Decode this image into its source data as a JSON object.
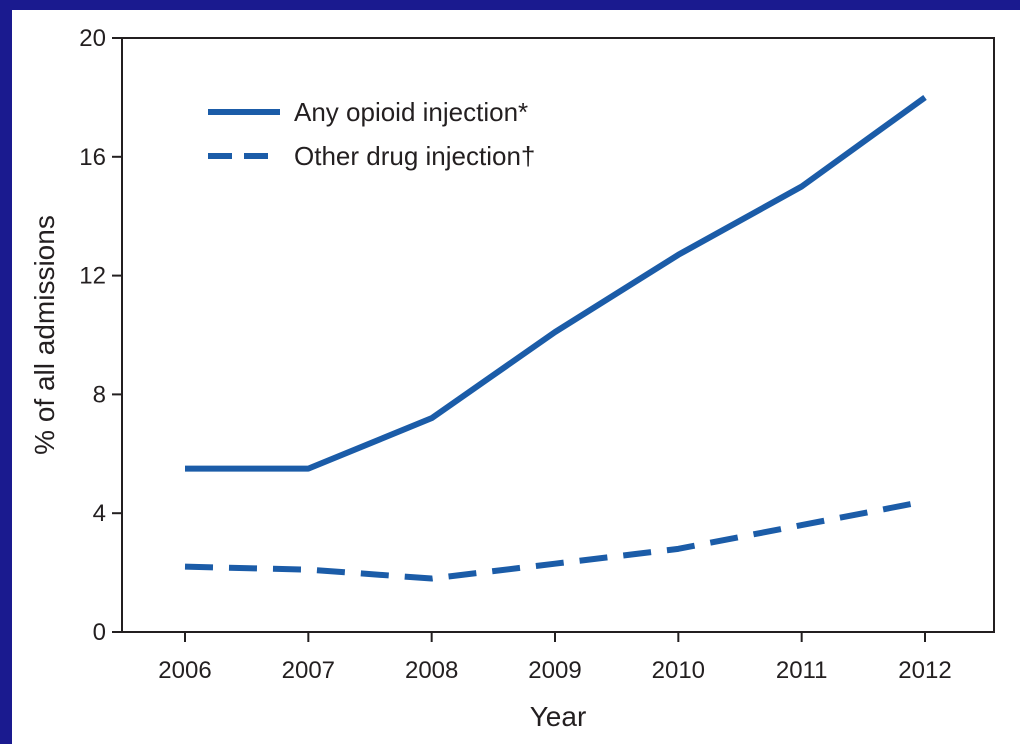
{
  "chart_data": {
    "type": "line",
    "xlabel": "Year",
    "ylabel": "% of all admissions",
    "x": [
      "2006",
      "2007",
      "2008",
      "2009",
      "2010",
      "2011",
      "2012"
    ],
    "yticks": [
      "0",
      "4",
      "8",
      "12",
      "16",
      "20"
    ],
    "ylim": [
      0,
      20
    ],
    "grid": false,
    "legend": "top-left",
    "series": [
      {
        "name": "Any opioid injection*",
        "values": [
          5.5,
          5.5,
          7.2,
          10.1,
          12.7,
          15.0,
          18.0
        ],
        "line_style": "solid",
        "color": "#1b5ca8"
      },
      {
        "name": "Other drug injection†",
        "values": [
          2.2,
          2.1,
          1.8,
          2.3,
          2.8,
          3.6,
          4.4
        ],
        "line_style": "dashed",
        "color": "#1b5ca8"
      }
    ]
  }
}
